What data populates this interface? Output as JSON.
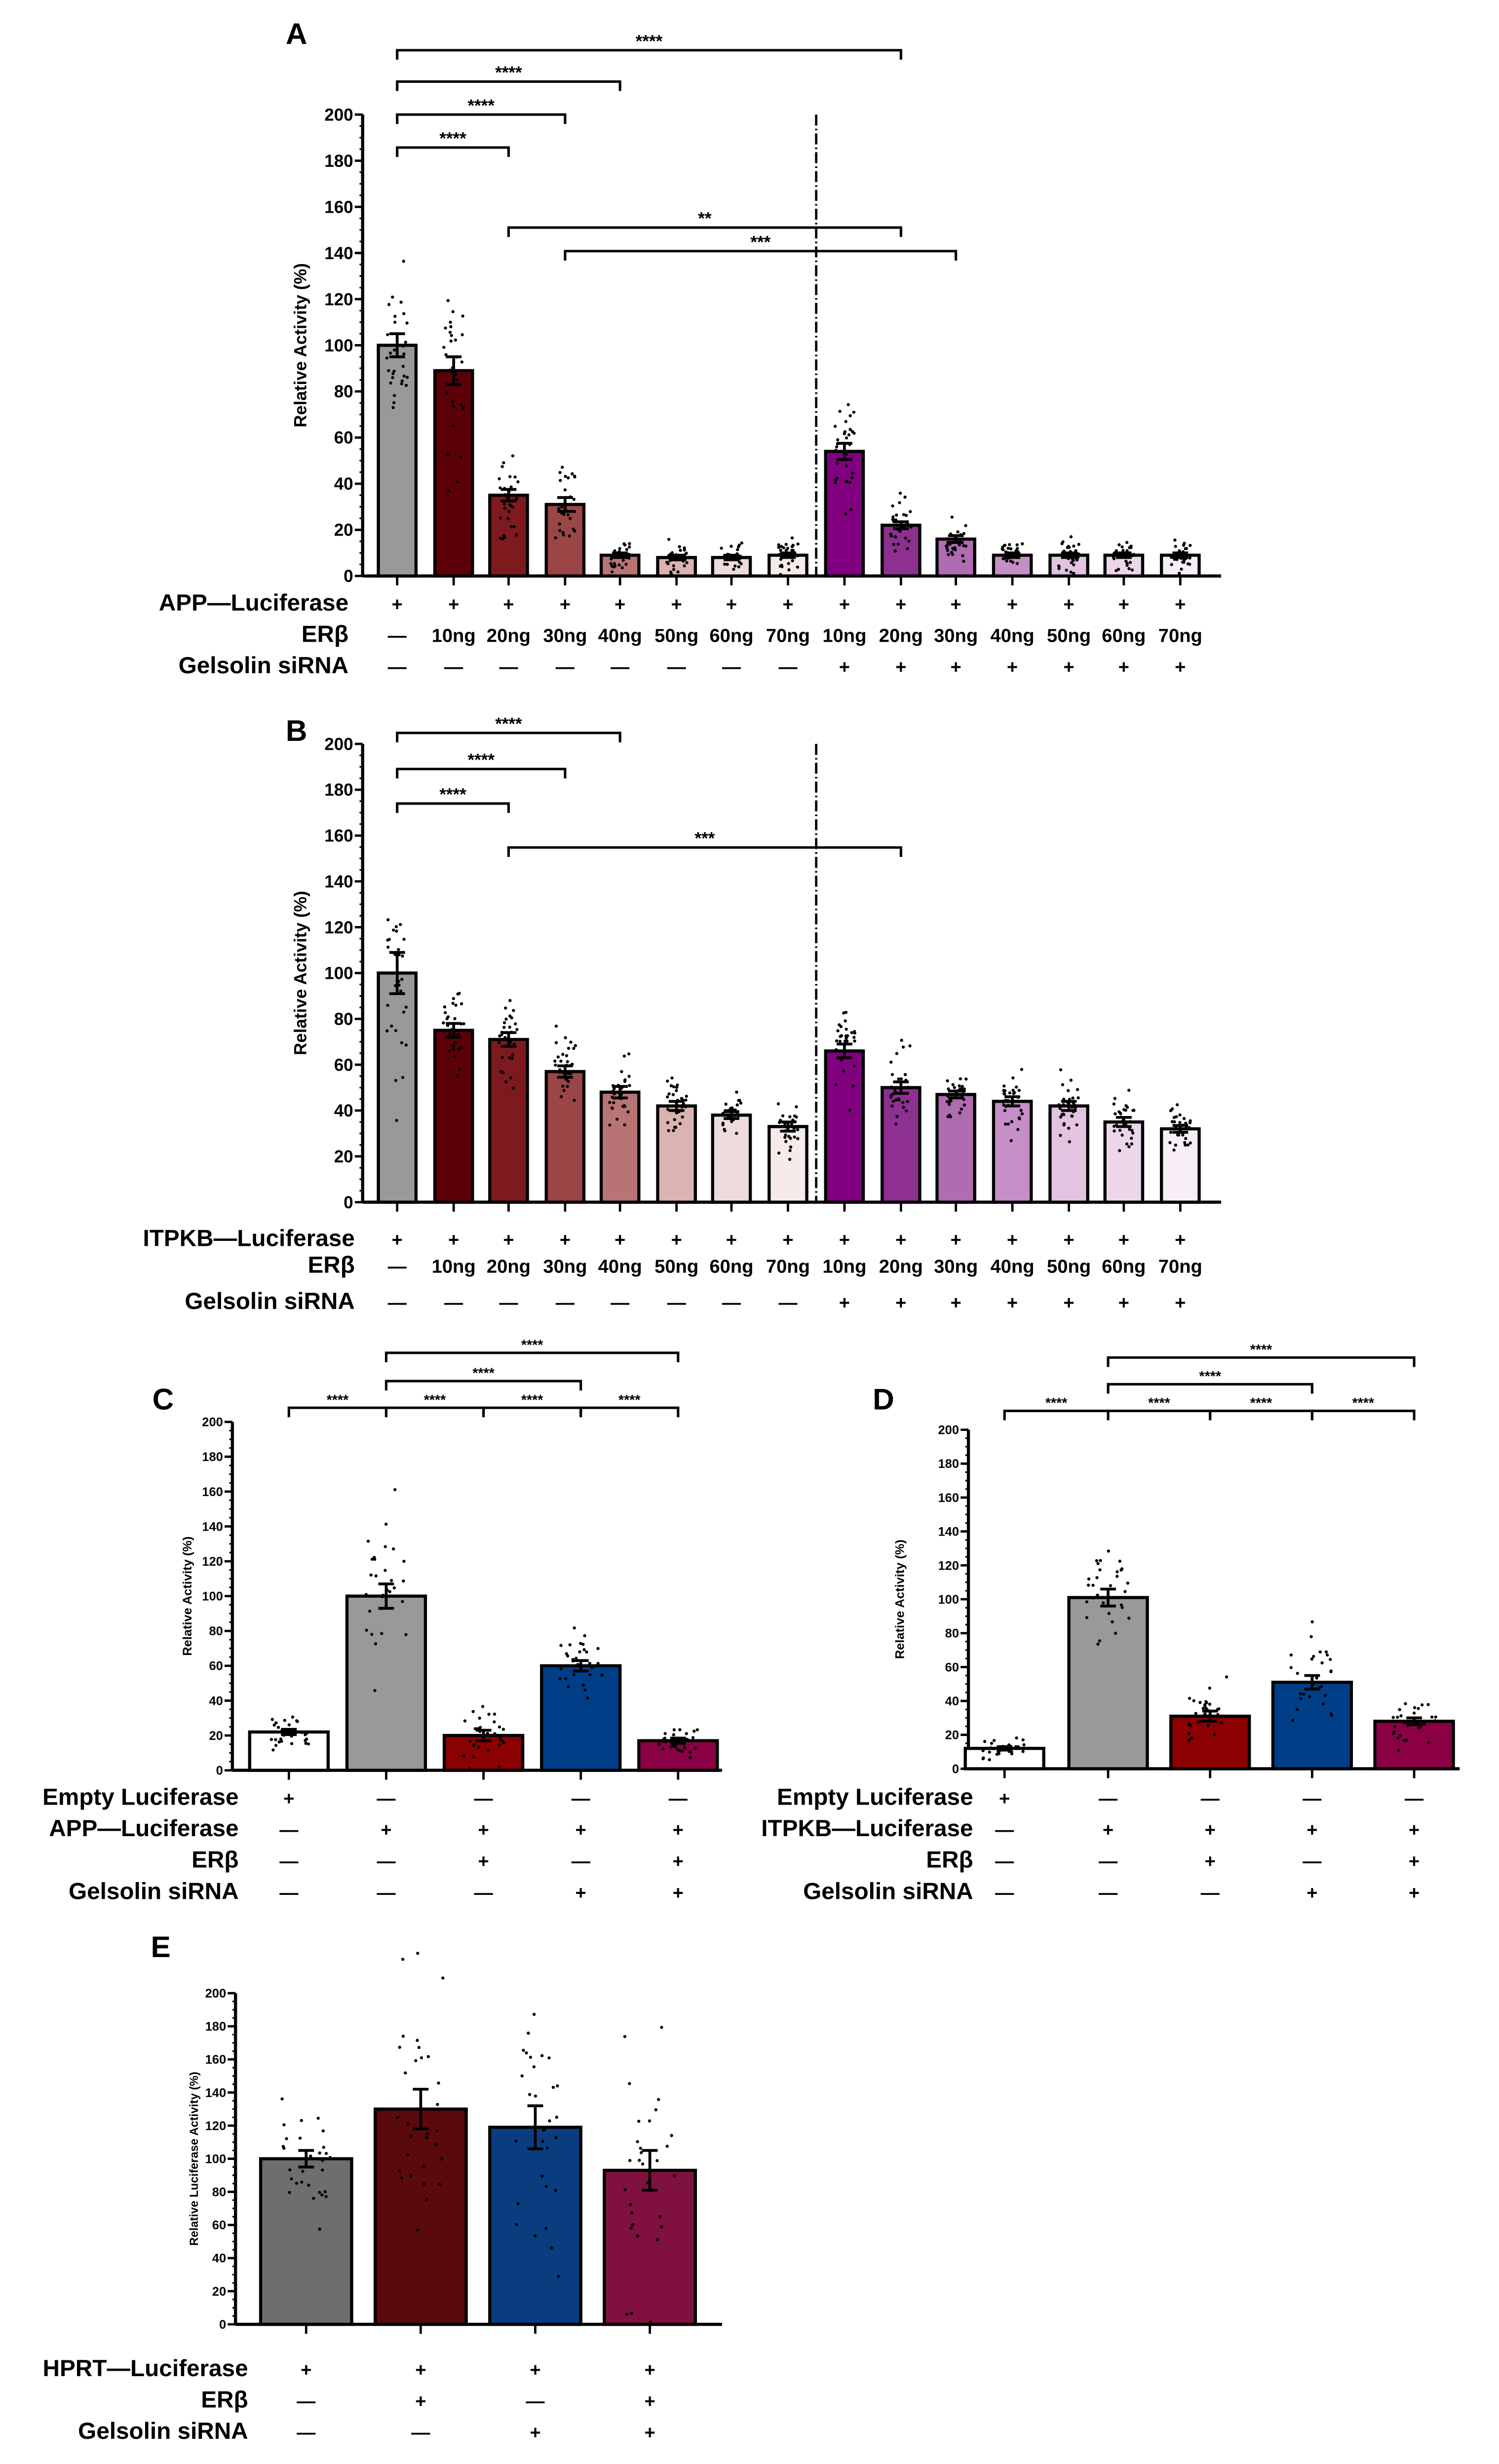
{
  "chart_data": [
    {
      "panel": "A",
      "type": "bar",
      "ylabel": "Relative Activity (%)",
      "ylim": [
        0,
        200
      ],
      "yticks": [
        0,
        20,
        40,
        60,
        80,
        100,
        120,
        140,
        160,
        180,
        200
      ],
      "values": [
        100,
        89,
        35,
        31,
        9,
        8,
        8,
        9,
        54,
        22,
        16,
        9,
        9,
        9,
        9
      ],
      "sem": [
        5,
        6,
        2.5,
        3,
        1,
        1,
        1,
        1,
        3.5,
        1.5,
        1.5,
        1,
        1,
        1,
        1
      ],
      "colors": [
        "#999999",
        "#5c0008",
        "#7d1a1e",
        "#9b4646",
        "#b87474",
        "#dbb3b1",
        "#eddcdb",
        "#f5ebea",
        "#800080",
        "#8e3090",
        "#b06cb0",
        "#c68ec6",
        "#e2c3e0",
        "#ecd6ea",
        "#f8eef7"
      ],
      "divider_after": 7,
      "rows": [
        {
          "label": "APP—Luciferase",
          "values": [
            "+",
            "+",
            "+",
            "+",
            "+",
            "+",
            "+",
            "+",
            "+",
            "+",
            "+",
            "+",
            "+",
            "+",
            "+"
          ]
        },
        {
          "label": "ERβ",
          "values": [
            "—",
            "10ng",
            "20ng",
            "30ng",
            "40ng",
            "50ng",
            "60ng",
            "70ng",
            "10ng",
            "20ng",
            "30ng",
            "40ng",
            "50ng",
            "60ng",
            "70ng"
          ]
        },
        {
          "label": "Gelsolin siRNA",
          "values": [
            "—",
            "—",
            "—",
            "—",
            "—",
            "—",
            "—",
            "—",
            "+",
            "+",
            "+",
            "+",
            "+",
            "+",
            "+"
          ]
        }
      ],
      "significance": [
        {
          "from": 0,
          "to": 2,
          "label": "****"
        },
        {
          "from": 0,
          "to": 3,
          "label": "****"
        },
        {
          "from": 0,
          "to": 4,
          "label": "****"
        },
        {
          "from": 0,
          "to": 9,
          "label": "****"
        },
        {
          "from": 2,
          "to": 9,
          "label": "**"
        },
        {
          "from": 3,
          "to": 10,
          "label": "***"
        }
      ]
    },
    {
      "panel": "B",
      "type": "bar",
      "ylabel": "Relative Activity (%)",
      "ylim": [
        0,
        200
      ],
      "yticks": [
        0,
        20,
        40,
        60,
        80,
        100,
        120,
        140,
        160,
        180,
        200
      ],
      "values": [
        100,
        75,
        71,
        57,
        48,
        42,
        38,
        33,
        66,
        50,
        47,
        44,
        42,
        35,
        32
      ],
      "sem": [
        9,
        3,
        3,
        2.5,
        2.5,
        2,
        1.5,
        2,
        3,
        2.5,
        1.5,
        2,
        2,
        2,
        1.5
      ],
      "colors": [
        "#999999",
        "#5c0008",
        "#7d1a1e",
        "#9b4646",
        "#b87474",
        "#dbb3b1",
        "#eddcdb",
        "#f5ebea",
        "#800080",
        "#8e3090",
        "#b06cb0",
        "#c68ec6",
        "#e2c3e0",
        "#ecd6ea",
        "#f8eef7"
      ],
      "divider_after": 7,
      "rows": [
        {
          "label": "ITPKB—Luciferase",
          "values": [
            "+",
            "+",
            "+",
            "+",
            "+",
            "+",
            "+",
            "+",
            "+",
            "+",
            "+",
            "+",
            "+",
            "+",
            "+"
          ]
        },
        {
          "label": "ERβ",
          "values": [
            "—",
            "10ng",
            "20ng",
            "30ng",
            "40ng",
            "50ng",
            "60ng",
            "70ng",
            "10ng",
            "20ng",
            "30ng",
            "40ng",
            "50ng",
            "60ng",
            "70ng"
          ]
        },
        {
          "label": "Gelsolin siRNA",
          "values": [
            "—",
            "—",
            "—",
            "—",
            "—",
            "—",
            "—",
            "—",
            "+",
            "+",
            "+",
            "+",
            "+",
            "+",
            "+"
          ]
        }
      ],
      "significance": [
        {
          "from": 0,
          "to": 2,
          "label": "****"
        },
        {
          "from": 0,
          "to": 3,
          "label": "****"
        },
        {
          "from": 0,
          "to": 4,
          "label": "****"
        },
        {
          "from": 2,
          "to": 9,
          "label": "***"
        }
      ]
    },
    {
      "panel": "C",
      "type": "bar",
      "ylabel": "Relative Activity (%)",
      "ylim": [
        0,
        200
      ],
      "yticks": [
        0,
        20,
        40,
        60,
        80,
        100,
        120,
        140,
        160,
        180,
        200
      ],
      "values": [
        22,
        100,
        20,
        60,
        17
      ],
      "sem": [
        1.5,
        7,
        3,
        3,
        1.5
      ],
      "colors": [
        "#ffffff",
        "#999999",
        "#8b0000",
        "#003f87",
        "#8b0045"
      ],
      "rows": [
        {
          "label": "Empty Luciferase",
          "values": [
            "+",
            "—",
            "—",
            "—",
            "—"
          ]
        },
        {
          "label": "APP—Luciferase",
          "values": [
            "—",
            "+",
            "+",
            "+",
            "+"
          ]
        },
        {
          "label": "ERβ",
          "values": [
            "—",
            "—",
            "+",
            "—",
            "+"
          ]
        },
        {
          "label": "Gelsolin siRNA",
          "values": [
            "—",
            "—",
            "—",
            "+",
            "+"
          ]
        }
      ],
      "significance": [
        {
          "from": 0,
          "to": 1,
          "label": "****"
        },
        {
          "from": 1,
          "to": 2,
          "label": "****"
        },
        {
          "from": 2,
          "to": 3,
          "label": "****"
        },
        {
          "from": 3,
          "to": 4,
          "label": "****"
        },
        {
          "from": 1,
          "to": 3,
          "label": "****"
        },
        {
          "from": 1,
          "to": 4,
          "label": "****"
        }
      ]
    },
    {
      "panel": "D",
      "type": "bar",
      "ylabel": "Relative Activity (%)",
      "ylim": [
        0,
        200
      ],
      "yticks": [
        0,
        20,
        40,
        60,
        80,
        100,
        120,
        140,
        160,
        180,
        200
      ],
      "values": [
        12,
        101,
        31,
        51,
        28
      ],
      "sem": [
        1,
        5,
        3,
        4,
        2
      ],
      "colors": [
        "#ffffff",
        "#999999",
        "#8b0000",
        "#003f87",
        "#8b0045"
      ],
      "rows": [
        {
          "label": "Empty Luciferase",
          "values": [
            "+",
            "—",
            "—",
            "—",
            "—"
          ]
        },
        {
          "label": "ITPKB—Luciferase",
          "values": [
            "—",
            "+",
            "+",
            "+",
            "+"
          ]
        },
        {
          "label": "ERβ",
          "values": [
            "—",
            "—",
            "+",
            "—",
            "+"
          ]
        },
        {
          "label": "Gelsolin siRNA",
          "values": [
            "—",
            "—",
            "—",
            "+",
            "+"
          ]
        }
      ],
      "significance": [
        {
          "from": 0,
          "to": 1,
          "label": "****"
        },
        {
          "from": 1,
          "to": 2,
          "label": "****"
        },
        {
          "from": 2,
          "to": 3,
          "label": "****"
        },
        {
          "from": 3,
          "to": 4,
          "label": "****"
        },
        {
          "from": 1,
          "to": 3,
          "label": "****"
        },
        {
          "from": 1,
          "to": 4,
          "label": "****"
        }
      ]
    },
    {
      "panel": "E",
      "type": "bar",
      "ylabel": "Relative Luciferase Activity (%)",
      "ylim": [
        0,
        200
      ],
      "yticks": [
        0,
        20,
        40,
        60,
        80,
        100,
        120,
        140,
        160,
        180,
        200
      ],
      "values": [
        100,
        130,
        119,
        93
      ],
      "sem": [
        5,
        12,
        13,
        12
      ],
      "colors": [
        "#6e6e6e",
        "#5a0a0a",
        "#0a3d80",
        "#80103f"
      ],
      "rows": [
        {
          "label": "HPRT—Luciferase",
          "values": [
            "+",
            "+",
            "+",
            "+"
          ]
        },
        {
          "label": "ERβ",
          "values": [
            "—",
            "+",
            "—",
            "+"
          ]
        },
        {
          "label": "Gelsolin siRNA",
          "values": [
            "—",
            "—",
            "+",
            "+"
          ]
        }
      ],
      "significance": []
    }
  ]
}
